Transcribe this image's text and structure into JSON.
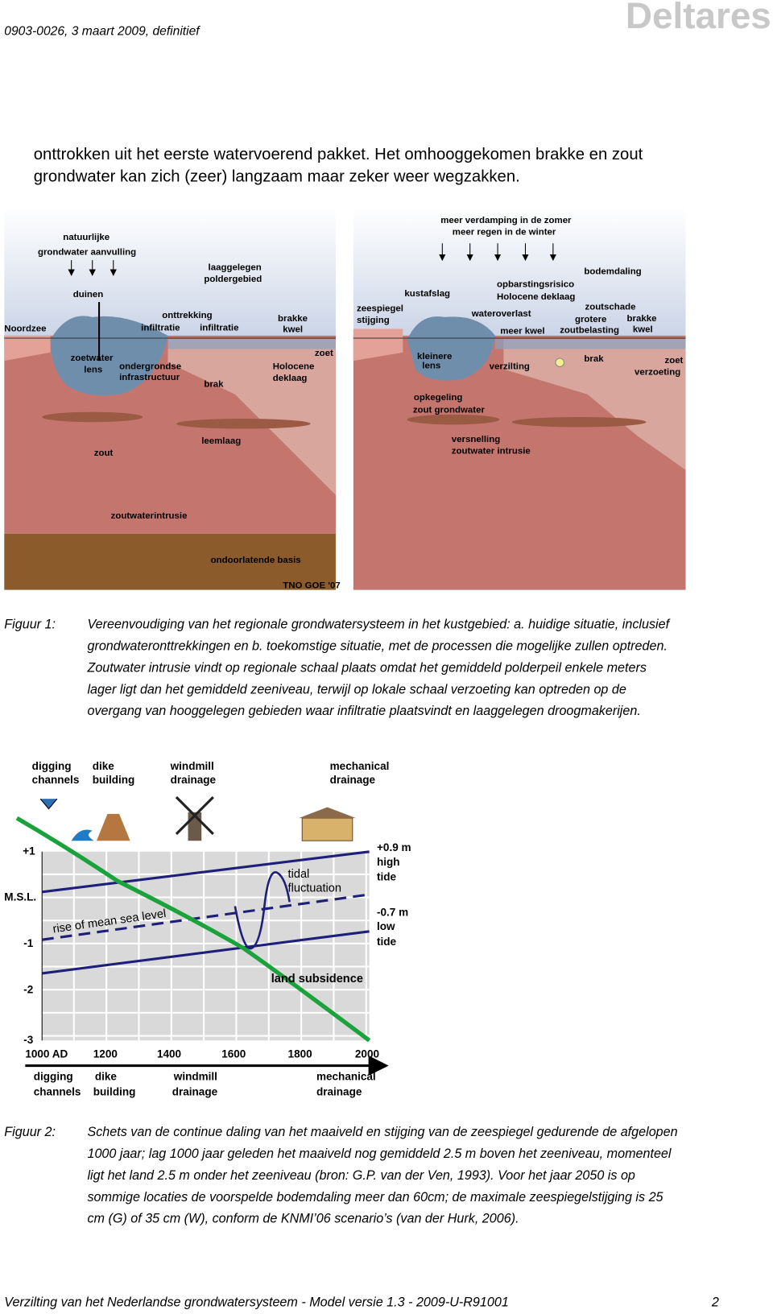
{
  "header": {
    "reference": "0903-0026, 3 maart 2009, definitief",
    "logo": "Deltares"
  },
  "body_text": [
    "onttrokken uit het eerste watervoerend pakket. Het omhooggekomen brakke en zout",
    "grondwater kan zich (zeer) langzaam maar zeker weer wegzakken."
  ],
  "figure_1": {
    "left_labels": [
      "natuurlijke",
      "grondwater aanvulling",
      "laaggelegen",
      "poldergebied",
      "duinen",
      "onttrekking",
      "infiltratie",
      "infiltratie",
      "brakke",
      "kwel",
      "Noordzee",
      "zoet",
      "zoetwater",
      "lens",
      "ondergrondse",
      "infrastructuur",
      "Holocene",
      "deklaag",
      "brak",
      "leemlaag",
      "zout",
      "zoutwaterintrusie",
      "ondoorlatende basis",
      "TNO GOE '07"
    ],
    "right_labels": [
      "meer verdamping in de zomer",
      "meer regen in de winter",
      "bodemdaling",
      "kustafslag",
      "opbarstingsrisico",
      "Holocene deklaag",
      "zeespiegel",
      "stijging",
      "wateroverlast",
      "zoutschade",
      "grotere",
      "brakke",
      "meer kwel",
      "zoutbelasting",
      "kwel",
      "kleinere",
      "lens",
      "verzilting",
      "brak",
      "zoet",
      "verzoeting",
      "opkegeling",
      "zout grondwater",
      "versnelling",
      "zoutwater intrusie"
    ],
    "caption": {
      "label": "Figuur 1:",
      "lines": [
        "Vereenvoudiging van het regionale grondwatersysteem in het kustgebied: a. huidige situatie, inclusief",
        "grondwateronttrekkingen en b. toekomstige situatie, met de processen die mogelijke zullen optreden.",
        "Zoutwater intrusie vindt op regionale schaal plaats omdat het gemiddeld polderpeil enkele meters",
        "lager ligt dan het gemiddeld zeeniveau, terwijl op lokale schaal verzoeting kan optreden op de",
        "overgang van hooggelegen gebieden waar infiltratie plaatsvindt en laaggelegen droogmakerijen."
      ]
    }
  },
  "figure_2": {
    "top_labels": [
      "digging",
      "channels",
      "dike",
      "building",
      "windmill",
      "drainage",
      "mechanical",
      "drainage"
    ],
    "y_axis_labels": [
      "+1",
      "M.S.L.",
      "-1",
      "-2",
      "-3"
    ],
    "x_axis_labels": [
      "1000 AD",
      "1200",
      "1400",
      "1600",
      "1800",
      "2000"
    ],
    "bottom_labels": [
      "digging",
      "channels",
      "dike",
      "building",
      "windmill",
      "drainage",
      "mechanical",
      "drainage"
    ],
    "tide_labels": [
      "+0.9 m",
      "high",
      "tide",
      "-0.7 m",
      "low",
      "tide"
    ],
    "annotations": [
      "tidal",
      "fluctuation",
      "rise of mean sea level",
      "land subsidence"
    ],
    "caption": {
      "label": "Figuur 2:",
      "lines": [
        "Schets van de continue daling van het maaiveld en stijging van de zeespiegel gedurende de afgelopen",
        "1000 jaar; lag 1000 jaar geleden het maaiveld nog gemiddeld 2.5 m boven het zeeniveau, momenteel",
        "ligt het land 2.5 m onder het zeeniveau (bron: G.P. van der Ven, 1993). Voor het jaar 2050 is op",
        "sommige locaties de voorspelde bodemdaling meer dan 60cm; de maximale zeespiegelstijging is 25",
        "cm (G) of 35 cm (W), conform de KNMI’06 scenario’s (van der Hurk, 2006)."
      ]
    }
  },
  "footer": {
    "title": "Verzilting van het Nederlandse grondwatersysteem - Model versie 1.3 -  2009-U-R91001",
    "page": "2"
  }
}
